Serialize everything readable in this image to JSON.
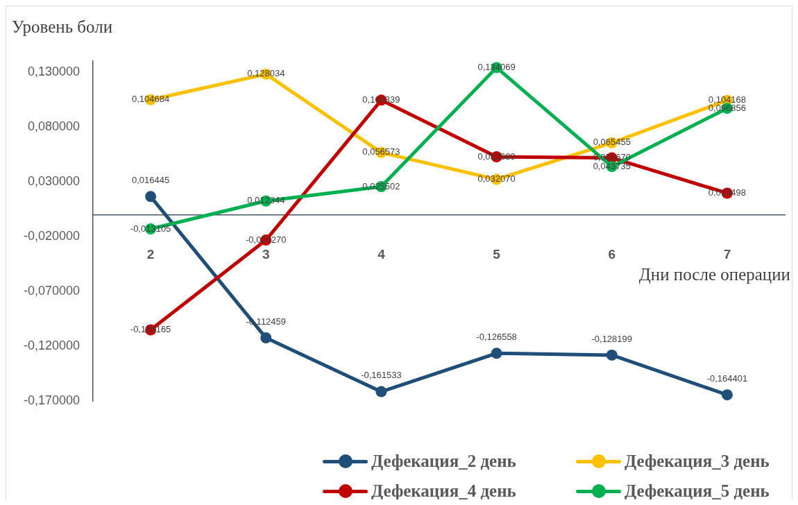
{
  "chart_data": {
    "type": "line",
    "ylabel": "Уровень боли",
    "xlabel": "Дни после операции",
    "categories": [
      "2",
      "3",
      "4",
      "5",
      "6",
      "7"
    ],
    "series": [
      {
        "name": "Дефекация_2 день",
        "color": "#1f4e79",
        "values": [
          0.016445,
          -0.112459,
          -0.161533,
          -0.126558,
          -0.128199,
          -0.164401
        ],
        "value_labels": [
          "0,016445",
          "-0,112459",
          "-0,161533",
          "-0,126558",
          "-0,128199",
          "-0,164401"
        ]
      },
      {
        "name": "Дефекация_3 день",
        "color": "#ffc000",
        "values": [
          0.104684,
          0.128034,
          0.056573,
          0.03207,
          0.065455,
          0.104168
        ],
        "value_labels": [
          "0,104684",
          "0,128034",
          "0,056573",
          "0,032070",
          "0,065455",
          "0,104168"
        ]
      },
      {
        "name": "Дефекация_4 день",
        "color": "#c00000",
        "values": [
          -0.105165,
          -0.02327,
          0.104339,
          0.052689,
          0.05167,
          0.019498
        ],
        "value_labels": [
          "-0,105165",
          "-0,023270",
          "0,104339",
          "0,052689",
          "0,051670",
          "0,019498"
        ]
      },
      {
        "name": "Дефекация_5 день",
        "color": "#00b050",
        "values": [
          -0.013105,
          0.012344,
          0.025502,
          0.134069,
          0.043735,
          0.096856
        ],
        "value_labels": [
          "-0,013105",
          "0,012344",
          "0,025502",
          "0,134069",
          "0,043735",
          "0,096856"
        ]
      }
    ],
    "ylim": [
      -0.17,
      0.14
    ],
    "yticks": [
      {
        "value": 0.13,
        "label": "0,130000"
      },
      {
        "value": 0.08,
        "label": "0,080000"
      },
      {
        "value": 0.03,
        "label": "0,030000"
      },
      {
        "value": -0.02,
        "label": "-0,020000"
      },
      {
        "value": -0.07,
        "label": "-0,070000"
      },
      {
        "value": -0.12,
        "label": "-0,120000"
      },
      {
        "value": -0.17,
        "label": "-0,170000"
      }
    ],
    "grid": false,
    "legend": "bottom",
    "marker": "circle",
    "line_style": "solid"
  }
}
